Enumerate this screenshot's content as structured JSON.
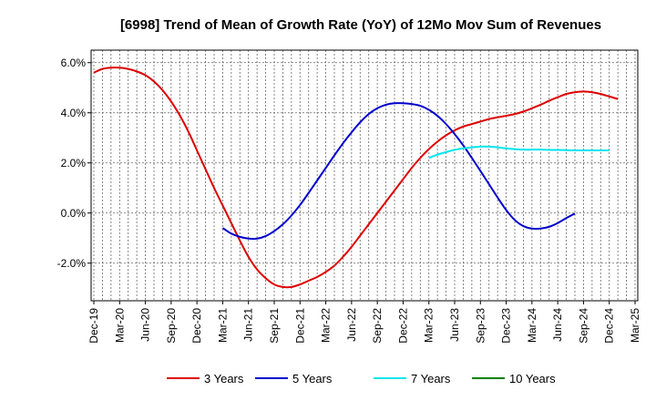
{
  "chart_data": {
    "type": "line",
    "title": "[6998]  Trend of Mean of Growth Rate (YoY) of 12Mo Mov Sum of Revenues",
    "xlabel": "",
    "ylabel": "",
    "ylim": [
      -3.5,
      6.5
    ],
    "yticks": [
      6.0,
      4.0,
      2.0,
      0.0,
      -2.0
    ],
    "ytick_labels": [
      "6.0%",
      "4.0%",
      "2.0%",
      "0.0%",
      "-2.0%"
    ],
    "x_categories": [
      "Dec-19",
      "Jan-20",
      "Feb-20",
      "Mar-20",
      "Apr-20",
      "May-20",
      "Jun-20",
      "Jul-20",
      "Aug-20",
      "Sep-20",
      "Oct-20",
      "Nov-20",
      "Dec-20",
      "Jan-21",
      "Feb-21",
      "Mar-21",
      "Apr-21",
      "May-21",
      "Jun-21",
      "Jul-21",
      "Aug-21",
      "Sep-21",
      "Oct-21",
      "Nov-21",
      "Dec-21",
      "Jan-22",
      "Feb-22",
      "Mar-22",
      "Apr-22",
      "May-22",
      "Jun-22",
      "Jul-22",
      "Aug-22",
      "Sep-22",
      "Oct-22",
      "Nov-22",
      "Dec-22",
      "Jan-23",
      "Feb-23",
      "Mar-23",
      "Apr-23",
      "May-23",
      "Jun-23",
      "Jul-23",
      "Aug-23",
      "Sep-23",
      "Oct-23",
      "Nov-23",
      "Dec-23",
      "Jan-24",
      "Feb-24",
      "Mar-24",
      "Apr-24",
      "May-24",
      "Jun-24",
      "Jul-24",
      "Aug-24",
      "Sep-24",
      "Oct-24",
      "Nov-24",
      "Dec-24",
      "Jan-25",
      "Feb-25",
      "Mar-25"
    ],
    "xtick_labels": [
      "Dec-19",
      "Mar-20",
      "Jun-20",
      "Sep-20",
      "Dec-20",
      "Mar-21",
      "Jun-21",
      "Sep-21",
      "Dec-21",
      "Mar-22",
      "Jun-22",
      "Sep-22",
      "Dec-22",
      "Mar-23",
      "Jun-23",
      "Sep-23",
      "Dec-23",
      "Mar-24",
      "Jun-24",
      "Sep-24",
      "Dec-24",
      "Mar-25"
    ],
    "series": [
      {
        "name": "3 Years",
        "color": "#dd0000",
        "start_index": 0,
        "values": [
          5.6,
          5.75,
          5.8,
          5.8,
          5.75,
          5.65,
          5.5,
          5.25,
          4.9,
          4.45,
          3.9,
          3.25,
          2.5,
          1.75,
          1.0,
          0.3,
          -0.4,
          -1.1,
          -1.75,
          -2.25,
          -2.6,
          -2.85,
          -2.95,
          -2.95,
          -2.85,
          -2.7,
          -2.55,
          -2.35,
          -2.1,
          -1.75,
          -1.35,
          -0.9,
          -0.45,
          0.0,
          0.45,
          0.9,
          1.35,
          1.8,
          2.2,
          2.55,
          2.85,
          3.1,
          3.3,
          3.45,
          3.55,
          3.65,
          3.75,
          3.82,
          3.88,
          3.95,
          4.05,
          4.18,
          4.32,
          4.48,
          4.62,
          4.75,
          4.82,
          4.85,
          4.82,
          4.75,
          4.65,
          4.55
        ]
      },
      {
        "name": "5 Years",
        "color": "#0000cc",
        "start_index": 15,
        "values": [
          -0.6,
          -0.82,
          -0.95,
          -1.02,
          -1.02,
          -0.92,
          -0.72,
          -0.45,
          -0.1,
          0.32,
          0.8,
          1.3,
          1.8,
          2.3,
          2.78,
          3.22,
          3.62,
          3.95,
          4.18,
          4.32,
          4.38,
          4.38,
          4.35,
          4.28,
          4.12,
          3.88,
          3.55,
          3.15,
          2.7,
          2.2,
          1.68,
          1.15,
          0.62,
          0.12,
          -0.28,
          -0.52,
          -0.62,
          -0.62,
          -0.55,
          -0.4,
          -0.2,
          -0.02
        ]
      },
      {
        "name": "7 Years",
        "color": "#00e5ee",
        "start_index": 39,
        "values": [
          2.2,
          2.33,
          2.43,
          2.52,
          2.58,
          2.62,
          2.65,
          2.65,
          2.62,
          2.58,
          2.55,
          2.53,
          2.53,
          2.53,
          2.52,
          2.52,
          2.51,
          2.5,
          2.5,
          2.5,
          2.5,
          2.5
        ]
      },
      {
        "name": "10 Years",
        "color": "#008000",
        "start_index": 0,
        "values": []
      }
    ],
    "legend": [
      "3 Years",
      "5 Years",
      "7 Years",
      "10 Years"
    ],
    "legend_position": "bottom",
    "grid": true
  }
}
